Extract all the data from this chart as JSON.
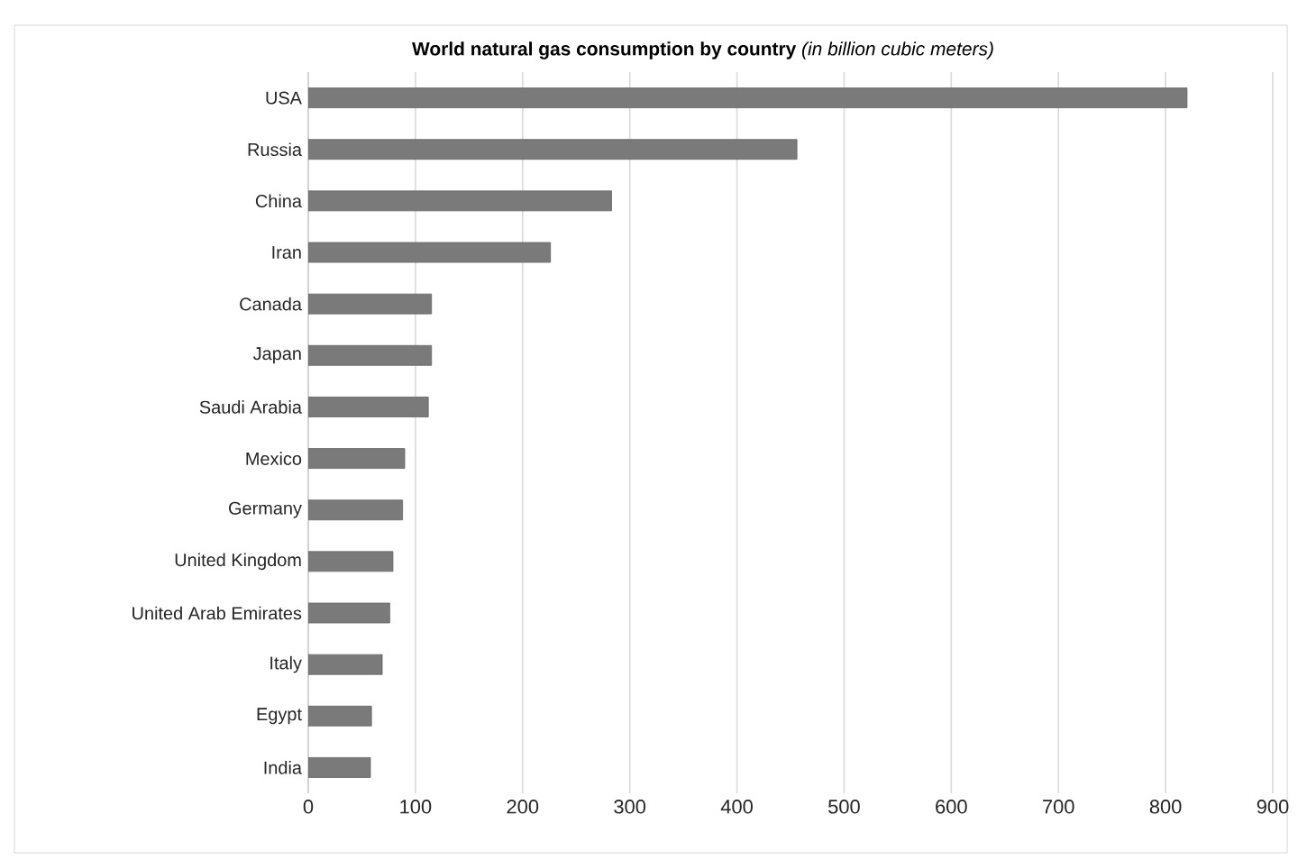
{
  "chart_data": {
    "type": "bar",
    "orientation": "horizontal",
    "title": "**World natural gas consumption by country** *(in billion cubic meters)*",
    "categories": [
      "USA",
      "Russia",
      "China",
      "Iran",
      "Canada",
      "Japan",
      "Saudi Arabia",
      "Mexico",
      "Germany",
      "United Kingdom",
      "United Arab Emirates",
      "Italy",
      "Egypt",
      "India"
    ],
    "values": [
      820,
      456,
      283,
      226,
      115,
      115,
      112,
      90,
      88,
      79,
      76,
      69,
      59,
      58
    ],
    "color": "#7a7a7a",
    "xlim": [
      0,
      900
    ],
    "xticks": [
      0,
      100,
      200,
      300,
      400,
      500,
      600,
      700,
      800,
      900
    ],
    "grid": "x"
  }
}
